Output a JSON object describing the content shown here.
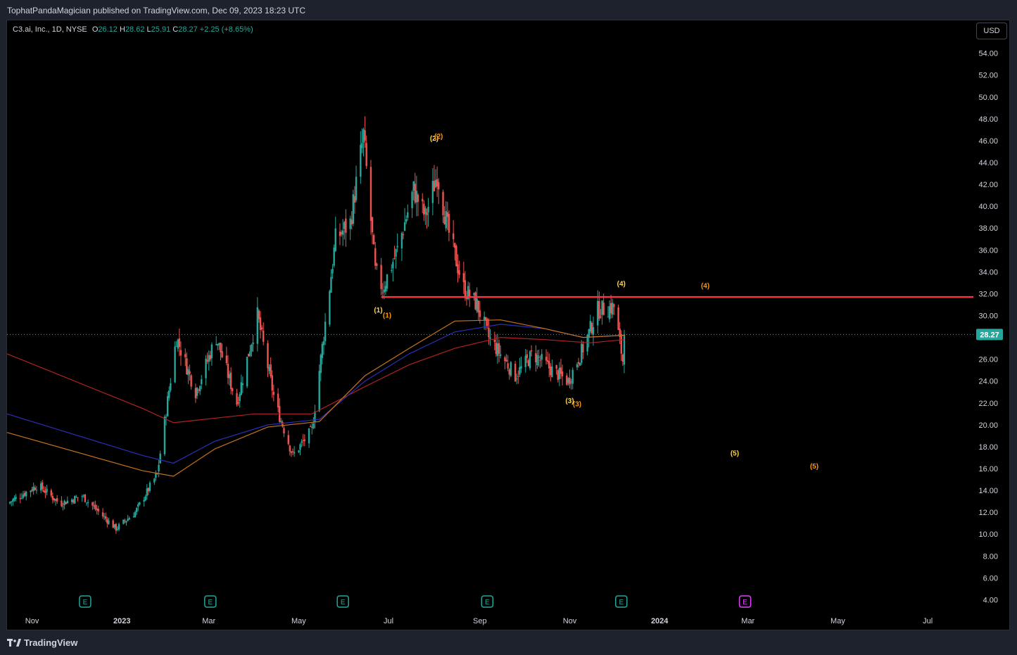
{
  "header": {
    "publisher_line": "TophatPandaMagician published on TradingView.com, Dec 09, 2023 18:23 UTC"
  },
  "legend": {
    "symbol": "C3.ai, Inc., 1D, NYSE",
    "o_label": "O",
    "o_value": "26.12",
    "h_label": "H",
    "h_value": "28.62",
    "l_label": "L",
    "l_value": "25.91",
    "c_label": "C",
    "c_value": "28.27",
    "change": "+2.25 (+8.65%)"
  },
  "currency_button": "USD",
  "footer": {
    "brand": "TradingView"
  },
  "colors": {
    "up": "#26a69a",
    "down": "#ef5350",
    "resistance": "#f23645",
    "ma_red": "#b22222",
    "ma_blue": "#2b2fb8",
    "ma_orange": "#c8741e",
    "wave_yellow": "#ffd54f",
    "wave_orange": "#ff9800",
    "earnings_teal": "#26a69a",
    "earnings_future": "#e040fb"
  },
  "chart_data": {
    "type": "candlestick",
    "y_axis": {
      "ticks": [
        "54.00",
        "52.00",
        "50.00",
        "48.00",
        "46.00",
        "44.00",
        "42.00",
        "40.00",
        "38.00",
        "36.00",
        "34.00",
        "32.00",
        "30.00",
        "28.00",
        "26.00",
        "24.00",
        "22.00",
        "20.00",
        "18.00",
        "16.00",
        "14.00",
        "12.00",
        "10.00",
        "8.00",
        "6.00",
        "4.00"
      ],
      "range": [
        3,
        57
      ]
    },
    "x_axis": {
      "ticks": [
        "Nov",
        "2023",
        "Mar",
        "May",
        "Jul",
        "Sep",
        "Nov",
        "2024",
        "Mar",
        "May",
        "Jul"
      ],
      "tick_dates": [
        "2022-11-01",
        "2023-01-01",
        "2023-03-01",
        "2023-05-01",
        "2023-07-01",
        "2023-09-01",
        "2023-11-01",
        "2024-01-01",
        "2024-03-01",
        "2024-05-01",
        "2024-07-01"
      ],
      "range": [
        "2022-10-15",
        "2024-08-01"
      ]
    },
    "last_price": {
      "value": 28.27,
      "label": "28.27"
    },
    "resistance_line": {
      "value": 31.7,
      "from": "2023-06-26",
      "to": "2024-08-01"
    },
    "key_prices": [
      {
        "date": "2022-10-15",
        "price": 12.8
      },
      {
        "date": "2022-11-05",
        "price": 14.5
      },
      {
        "date": "2022-11-20",
        "price": 12.8
      },
      {
        "date": "2022-12-05",
        "price": 13.5
      },
      {
        "date": "2022-12-28",
        "price": 10.5
      },
      {
        "date": "2023-01-10",
        "price": 12.0
      },
      {
        "date": "2023-01-25",
        "price": 15.5
      },
      {
        "date": "2023-02-07",
        "price": 28.0
      },
      {
        "date": "2023-02-20",
        "price": 23.0
      },
      {
        "date": "2023-03-06",
        "price": 28.0
      },
      {
        "date": "2023-03-20",
        "price": 22.0
      },
      {
        "date": "2023-04-03",
        "price": 30.0
      },
      {
        "date": "2023-04-15",
        "price": 22.0
      },
      {
        "date": "2023-04-27",
        "price": 17.2
      },
      {
        "date": "2023-05-10",
        "price": 19.5
      },
      {
        "date": "2023-05-26",
        "price": 37.0
      },
      {
        "date": "2023-06-05",
        "price": 38.5
      },
      {
        "date": "2023-06-14",
        "price": 46.5
      },
      {
        "date": "2023-06-22",
        "price": 34.0
      },
      {
        "date": "2023-06-27",
        "price": 32.5
      },
      {
        "date": "2023-07-07",
        "price": 36.0
      },
      {
        "date": "2023-07-18",
        "price": 41.5
      },
      {
        "date": "2023-07-26",
        "price": 39.0
      },
      {
        "date": "2023-08-03",
        "price": 43.0
      },
      {
        "date": "2023-08-10",
        "price": 38.0
      },
      {
        "date": "2023-08-21",
        "price": 32.5
      },
      {
        "date": "2023-08-30",
        "price": 31.0
      },
      {
        "date": "2023-09-07",
        "price": 28.0
      },
      {
        "date": "2023-09-25",
        "price": 24.5
      },
      {
        "date": "2023-10-07",
        "price": 26.5
      },
      {
        "date": "2023-10-20",
        "price": 25.0
      },
      {
        "date": "2023-10-31",
        "price": 24.0
      },
      {
        "date": "2023-11-10",
        "price": 27.0
      },
      {
        "date": "2023-11-20",
        "price": 30.5
      },
      {
        "date": "2023-12-01",
        "price": 30.8
      },
      {
        "date": "2023-12-07",
        "price": 25.9
      },
      {
        "date": "2023-12-08",
        "price": 28.27
      }
    ],
    "moving_averages": [
      {
        "color_key": "ma_red",
        "points": [
          [
            "2022-10-15",
            26.5
          ],
          [
            "2023-01-15",
            21.5
          ],
          [
            "2023-02-05",
            20.2
          ],
          [
            "2023-04-01",
            21.0
          ],
          [
            "2023-05-10",
            21.0
          ],
          [
            "2023-06-15",
            23.5
          ],
          [
            "2023-07-15",
            25.5
          ],
          [
            "2023-08-15",
            27.0
          ],
          [
            "2023-09-15",
            28.0
          ],
          [
            "2023-10-15",
            27.8
          ],
          [
            "2023-11-15",
            27.5
          ],
          [
            "2023-12-08",
            27.8
          ]
        ]
      },
      {
        "color_key": "ma_blue",
        "points": [
          [
            "2022-10-15",
            21.0
          ],
          [
            "2023-01-15",
            17.2
          ],
          [
            "2023-02-05",
            16.5
          ],
          [
            "2023-03-05",
            18.5
          ],
          [
            "2023-04-10",
            20.0
          ],
          [
            "2023-05-15",
            20.5
          ],
          [
            "2023-06-15",
            24.0
          ],
          [
            "2023-07-15",
            26.5
          ],
          [
            "2023-08-15",
            28.5
          ],
          [
            "2023-09-15",
            29.2
          ],
          [
            "2023-10-15",
            28.8
          ],
          [
            "2023-11-10",
            28.0
          ],
          [
            "2023-12-08",
            28.2
          ]
        ]
      },
      {
        "color_key": "ma_orange",
        "points": [
          [
            "2022-10-15",
            19.3
          ],
          [
            "2023-01-15",
            15.8
          ],
          [
            "2023-02-05",
            15.3
          ],
          [
            "2023-03-05",
            17.8
          ],
          [
            "2023-04-10",
            19.8
          ],
          [
            "2023-05-15",
            20.3
          ],
          [
            "2023-06-15",
            24.5
          ],
          [
            "2023-07-15",
            27.0
          ],
          [
            "2023-08-15",
            29.5
          ],
          [
            "2023-09-15",
            29.6
          ],
          [
            "2023-10-15",
            28.8
          ],
          [
            "2023-11-10",
            28.0
          ],
          [
            "2023-12-08",
            28.2
          ]
        ]
      }
    ],
    "annotations": [
      {
        "text": "(1)",
        "date": "2023-06-24",
        "price": 30.3,
        "color_key": "wave_yellow"
      },
      {
        "text": "(1)",
        "date": "2023-06-30",
        "price": 29.8,
        "color_key": "wave_orange"
      },
      {
        "text": "(2)",
        "date": "2023-08-01",
        "price": 46.0,
        "color_key": "wave_yellow"
      },
      {
        "text": "(2)",
        "date": "2023-08-04",
        "price": 46.2,
        "color_key": "wave_orange"
      },
      {
        "text": "(3)",
        "date": "2023-11-01",
        "price": 22.0,
        "color_key": "wave_yellow"
      },
      {
        "text": "(3)",
        "date": "2023-11-06",
        "price": 21.7,
        "color_key": "wave_orange"
      },
      {
        "text": "(4)",
        "date": "2023-12-06",
        "price": 32.7,
        "color_key": "wave_yellow"
      },
      {
        "text": "(4)",
        "date": "2024-02-01",
        "price": 32.5,
        "color_key": "wave_orange"
      },
      {
        "text": "(5)",
        "date": "2024-02-21",
        "price": 17.2,
        "color_key": "wave_yellow"
      },
      {
        "text": "(5)",
        "date": "2024-04-15",
        "price": 16.0,
        "color_key": "wave_orange"
      }
    ],
    "earnings_markers": [
      {
        "label": "E",
        "date": "2022-12-07",
        "future": false
      },
      {
        "label": "E",
        "date": "2023-03-02",
        "future": false
      },
      {
        "label": "E",
        "date": "2023-05-31",
        "future": false
      },
      {
        "label": "E",
        "date": "2023-09-06",
        "future": false
      },
      {
        "label": "E",
        "date": "2023-12-06",
        "future": false
      },
      {
        "label": "E",
        "date": "2024-02-28",
        "future": true
      }
    ]
  }
}
